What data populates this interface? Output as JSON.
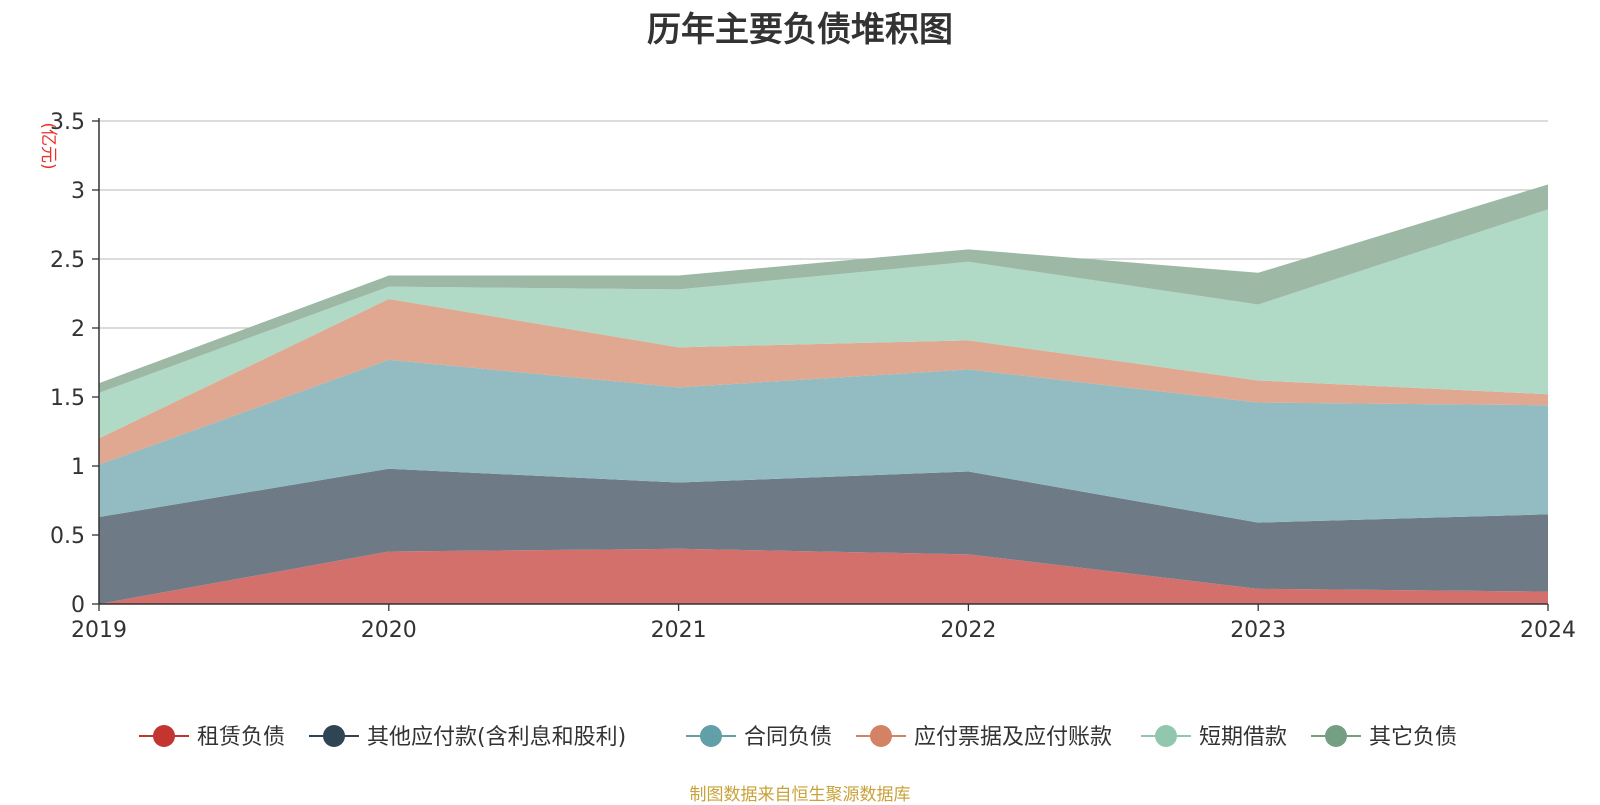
{
  "chart_data": {
    "type": "area",
    "stacked": true,
    "title": "历年主要负债堆积图",
    "ylabel": "(亿元)",
    "xlabel": "",
    "ylim": [
      0,
      3.5
    ],
    "y_ticks": [
      "0",
      "0.5",
      "1",
      "1.5",
      "2",
      "2.5",
      "3",
      "3.5"
    ],
    "categories": [
      "2019",
      "2020",
      "2021",
      "2022",
      "2023",
      "2024"
    ],
    "grid": true,
    "legend_position": "bottom",
    "series": [
      {
        "name": "租赁负债",
        "color": "#d4706c",
        "legend_color": "#c23531",
        "values": [
          0.0,
          0.38,
          0.4,
          0.36,
          0.11,
          0.09
        ]
      },
      {
        "name": "其他应付款(含利息和股利)",
        "color": "#6e7b86",
        "legend_color": "#2f4554",
        "values": [
          0.63,
          0.6,
          0.48,
          0.6,
          0.48,
          0.56
        ]
      },
      {
        "name": "合同负债",
        "color": "#92bcc1",
        "legend_color": "#61a0a8",
        "values": [
          0.38,
          0.79,
          0.69,
          0.74,
          0.87,
          0.79
        ]
      },
      {
        "name": "应付票据及应付账款",
        "color": "#e0a791",
        "legend_color": "#d48265",
        "values": [
          0.19,
          0.44,
          0.29,
          0.21,
          0.16,
          0.08
        ]
      },
      {
        "name": "短期借款",
        "color": "#b0d9c6",
        "legend_color": "#91c7ae",
        "values": [
          0.33,
          0.09,
          0.42,
          0.57,
          0.55,
          1.34
        ]
      },
      {
        "name": "其它负债",
        "color": "#9db8a5",
        "legend_color": "#749f83",
        "values": [
          0.07,
          0.08,
          0.1,
          0.09,
          0.23,
          0.18
        ]
      }
    ]
  },
  "footer": "制图数据来自恒生聚源数据库"
}
